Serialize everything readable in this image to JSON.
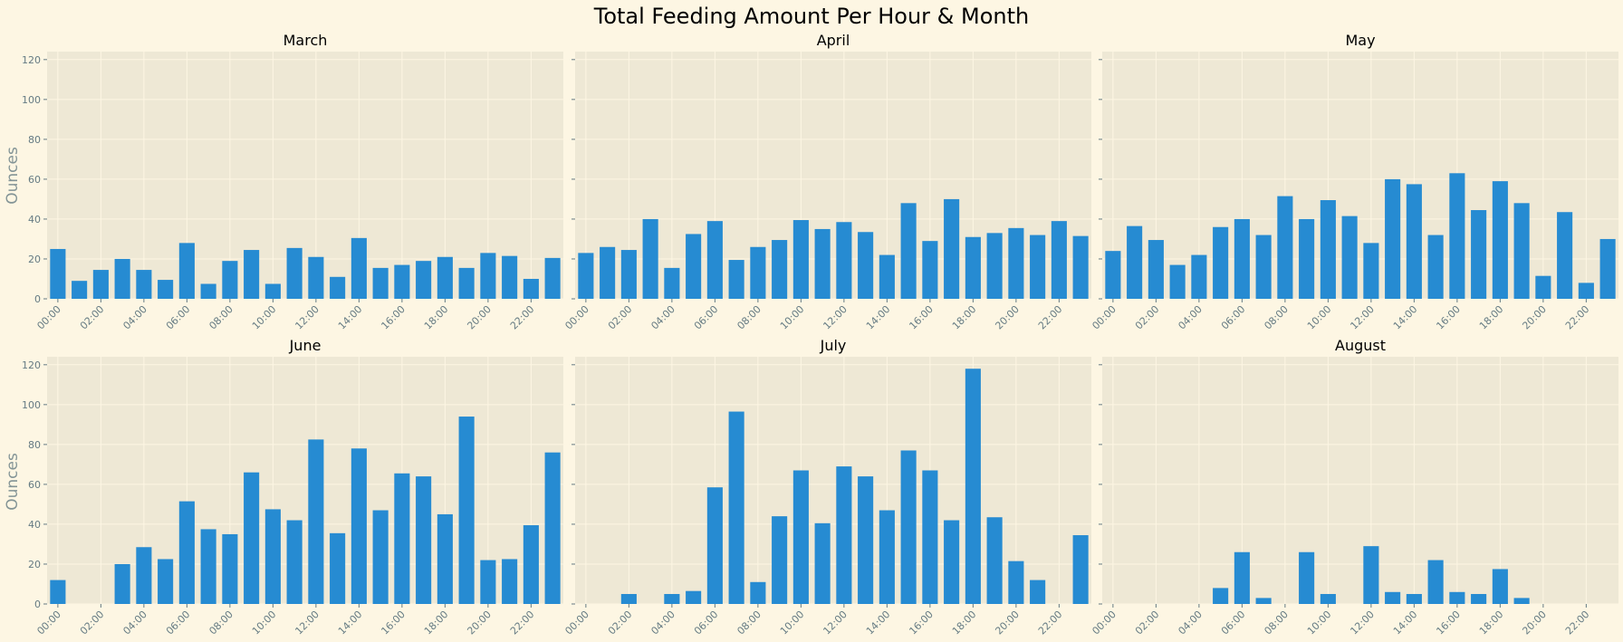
{
  "colors": {
    "background": "#fdf6e3",
    "plot_background": "#eee8d5",
    "bar": "#268bd2",
    "grid": "#fdf6e3",
    "text": "#000000",
    "tick": "#657b83",
    "ylabel": "#839496"
  },
  "chart_data": {
    "type": "bar",
    "title": "Total Feeding Amount Per Hour & Month",
    "ylabel": "Ounces",
    "ylim": [
      0,
      124
    ],
    "yticks": [
      0,
      20,
      40,
      60,
      80,
      100,
      120
    ],
    "grid": true,
    "hours": [
      "00:00",
      "01:00",
      "02:00",
      "03:00",
      "04:00",
      "05:00",
      "06:00",
      "07:00",
      "08:00",
      "09:00",
      "10:00",
      "11:00",
      "12:00",
      "13:00",
      "14:00",
      "15:00",
      "16:00",
      "17:00",
      "18:00",
      "19:00",
      "20:00",
      "21:00",
      "22:00",
      "23:00"
    ],
    "xtick_labels": [
      "00:00",
      "02:00",
      "04:00",
      "06:00",
      "08:00",
      "10:00",
      "12:00",
      "14:00",
      "16:00",
      "18:00",
      "20:00",
      "22:00"
    ],
    "panels": [
      {
        "name": "March",
        "values": [
          25,
          9,
          14.5,
          20,
          14.5,
          9.5,
          28,
          7.5,
          19,
          24.5,
          7.5,
          25.5,
          21,
          11,
          30.5,
          15.5,
          17,
          19,
          21,
          15.5,
          23,
          21.5,
          10,
          20.5
        ]
      },
      {
        "name": "April",
        "values": [
          23,
          26,
          24.5,
          40,
          15.5,
          32.5,
          39,
          19.5,
          26,
          29.5,
          39.5,
          35,
          38.5,
          33.5,
          22,
          48,
          29,
          50,
          31,
          33,
          35.5,
          32,
          39,
          31.5
        ]
      },
      {
        "name": "May",
        "values": [
          24,
          36.5,
          29.5,
          17,
          22,
          36,
          40,
          32,
          51.5,
          40,
          49.5,
          41.5,
          28,
          60,
          57.5,
          32,
          63,
          44.5,
          59,
          48,
          11.5,
          43.5,
          8,
          30
        ]
      },
      {
        "name": "June",
        "values": [
          12,
          0,
          0,
          20,
          28.5,
          22.5,
          51.5,
          37.5,
          35,
          66,
          47.5,
          42,
          82.5,
          35.5,
          78,
          47,
          65.5,
          64,
          45,
          94,
          22,
          22.5,
          39.5,
          76
        ]
      },
      {
        "name": "July",
        "values": [
          0,
          0,
          5,
          0,
          5,
          6.5,
          58.5,
          96.5,
          11,
          44,
          67,
          40.5,
          69,
          64,
          47,
          77,
          67,
          42,
          118,
          43.5,
          21.5,
          12,
          0,
          34.5
        ]
      },
      {
        "name": "August",
        "values": [
          0,
          0,
          0,
          0,
          0,
          8,
          26,
          3,
          0,
          26,
          5,
          0,
          29,
          6,
          5,
          22,
          6,
          5,
          17.5,
          3,
          0,
          0,
          0,
          0
        ]
      }
    ]
  }
}
